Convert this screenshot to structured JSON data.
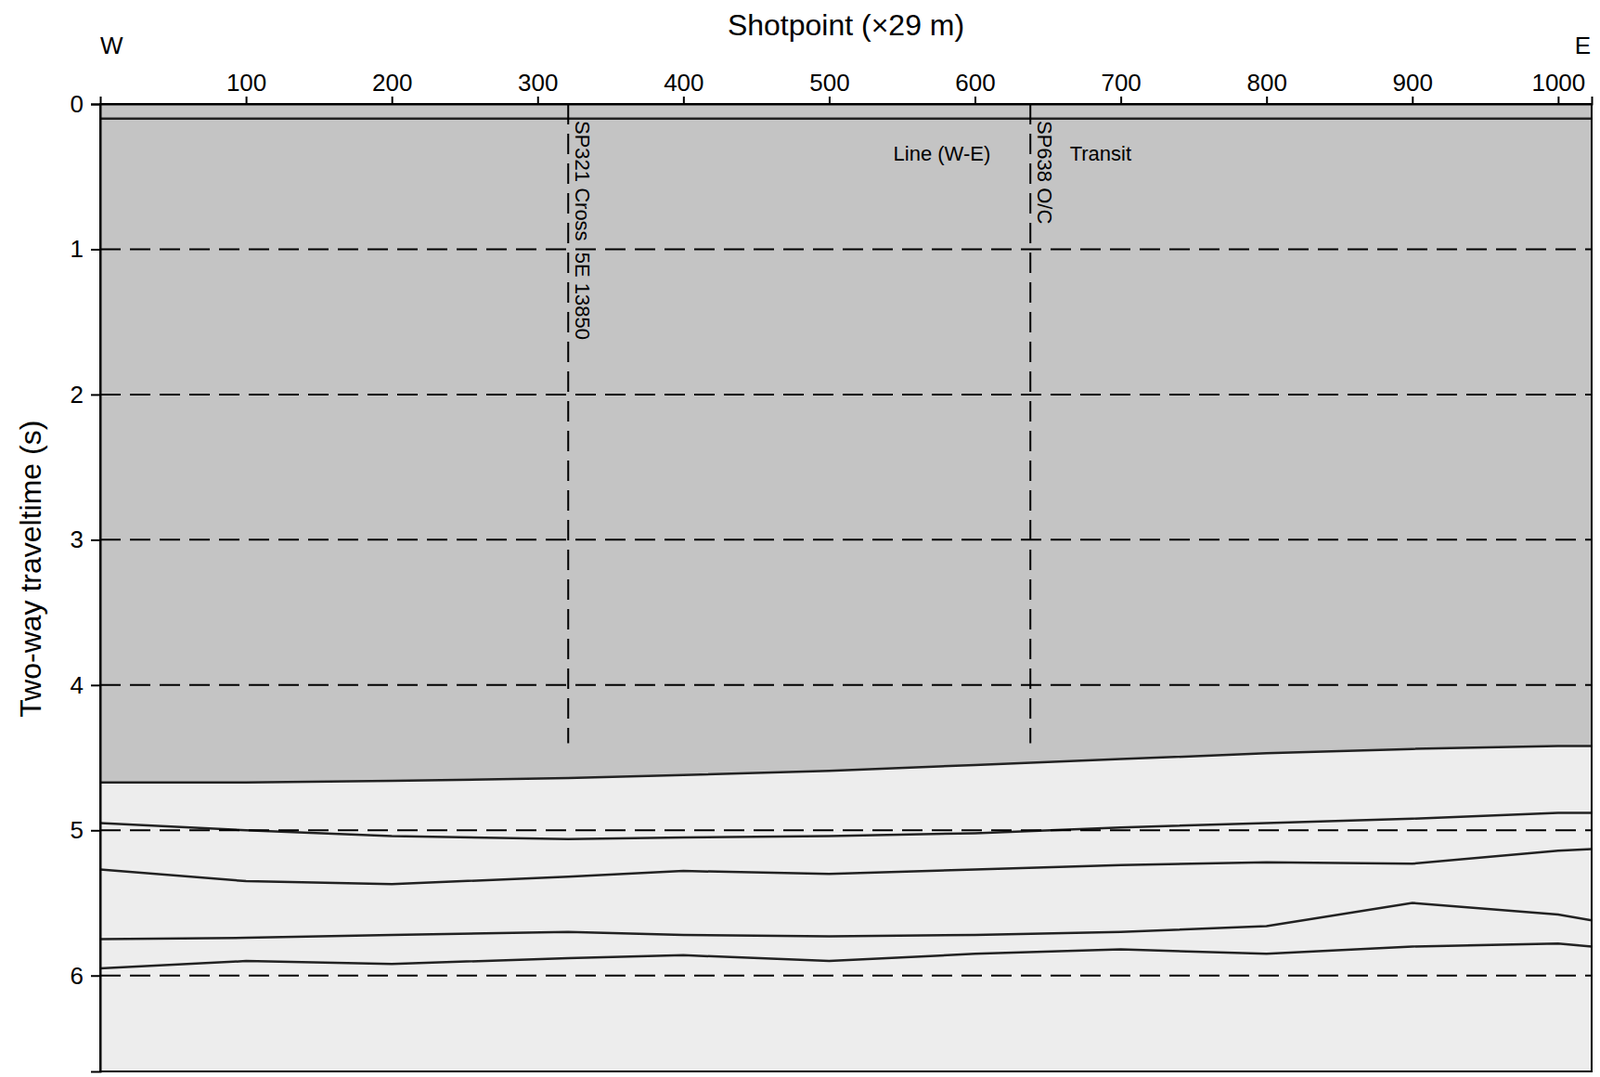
{
  "chart_data": {
    "type": "line",
    "x_label": "Shotpoint (×29 m)",
    "y_label": "Two-way traveltime (s)",
    "end_labels": [
      "W",
      "E"
    ],
    "xlim": [
      0,
      1023
    ],
    "ylim": [
      0,
      6.66
    ],
    "xticks": [
      100,
      200,
      300,
      400,
      500,
      600,
      700,
      800,
      900,
      1000
    ],
    "yticks": [
      0,
      1,
      2,
      3,
      4,
      5,
      6
    ],
    "grid": true,
    "color": "#222222",
    "series": [
      {
        "x": [
          0,
          1023
        ],
        "values": [
          0.1,
          0.1
        ]
      },
      {
        "x": [
          0,
          100,
          200,
          321,
          400,
          500,
          600,
          700,
          800,
          900,
          1000,
          1023
        ],
        "values": [
          4.67,
          4.67,
          4.66,
          4.64,
          4.62,
          4.59,
          4.55,
          4.51,
          4.47,
          4.44,
          4.42,
          4.42
        ]
      },
      {
        "x": [
          0,
          100,
          200,
          321,
          400,
          500,
          600,
          700,
          800,
          900,
          1000,
          1023
        ],
        "values": [
          4.95,
          5.0,
          5.04,
          5.06,
          5.05,
          5.04,
          5.02,
          4.98,
          4.95,
          4.92,
          4.88,
          4.88
        ]
      },
      {
        "x": [
          0,
          100,
          200,
          321,
          400,
          500,
          600,
          700,
          800,
          900,
          1000,
          1023
        ],
        "values": [
          5.27,
          5.35,
          5.37,
          5.32,
          5.28,
          5.3,
          5.27,
          5.24,
          5.22,
          5.23,
          5.14,
          5.13
        ]
      },
      {
        "x": [
          0,
          100,
          200,
          321,
          400,
          500,
          600,
          700,
          800,
          900,
          1000,
          1023
        ],
        "values": [
          5.75,
          5.74,
          5.72,
          5.7,
          5.72,
          5.73,
          5.72,
          5.7,
          5.66,
          5.5,
          5.58,
          5.62
        ]
      },
      {
        "x": [
          0,
          100,
          200,
          321,
          400,
          500,
          600,
          700,
          800,
          900,
          1000,
          1023
        ],
        "values": [
          5.95,
          5.9,
          5.92,
          5.88,
          5.86,
          5.9,
          5.85,
          5.82,
          5.85,
          5.8,
          5.78,
          5.8
        ]
      }
    ],
    "markers": [
      {
        "x": 321,
        "y_end": 4.4,
        "label": "SP321 Cross  5E 13850"
      },
      {
        "x": 638,
        "y_end": 4.4,
        "label": "SP638 O/C"
      }
    ],
    "annotations": [
      {
        "text": "Line (W-E)",
        "x": 544,
        "y": 0.35
      },
      {
        "text": "Transit",
        "x": 665,
        "y": 0.35
      }
    ]
  }
}
